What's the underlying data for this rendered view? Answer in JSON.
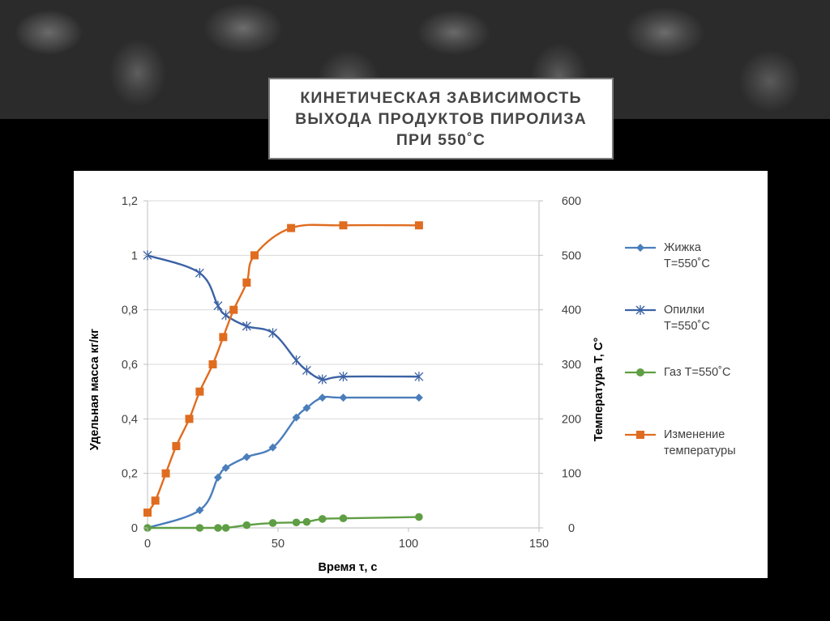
{
  "slide": {
    "title_lines": [
      "КИНЕТИЧЕСКАЯ ЗАВИСИМОСТЬ",
      "ВЫХОДА ПРОДУКТОВ ПИРОЛИЗА",
      "ПРИ 550˚С"
    ]
  },
  "chart_data": {
    "type": "line",
    "title": "",
    "xlabel": "Время τ, с",
    "ylabel": "Удельная масса кг/кг",
    "y2label": "Температура Т, С°",
    "xlim": [
      0,
      150
    ],
    "ylim": [
      0,
      1.2
    ],
    "y2lim": [
      0,
      600
    ],
    "x_ticks": [
      "0",
      "50",
      "100",
      "150"
    ],
    "x_tick_values": [
      0,
      50,
      100,
      150
    ],
    "y_ticks": [
      "0",
      "0,2",
      "0,4",
      "0,6",
      "0,8",
      "1",
      "1,2"
    ],
    "y_tick_values": [
      0,
      0.2,
      0.4,
      0.6,
      0.8,
      1.0,
      1.2
    ],
    "y2_ticks": [
      "0",
      "100",
      "200",
      "300",
      "400",
      "500",
      "600"
    ],
    "y2_tick_values": [
      0,
      100,
      200,
      300,
      400,
      500,
      600
    ],
    "grid": true,
    "legend_position": "right",
    "series": [
      {
        "name": "Жижка Т=550˚С",
        "legend_lines": [
          "Жижка",
          "Т=550˚С"
        ],
        "axis": "left",
        "marker": "diamond",
        "color": "#4a7ebb",
        "x": [
          0,
          20,
          27,
          30,
          38,
          48,
          57,
          61,
          67,
          75,
          104
        ],
        "y": [
          0.0,
          0.065,
          0.185,
          0.22,
          0.26,
          0.295,
          0.405,
          0.44,
          0.478,
          0.478,
          0.478
        ]
      },
      {
        "name": "Опилки Т=550˚С",
        "legend_lines": [
          "Опилки",
          "Т=550˚С"
        ],
        "axis": "left",
        "marker": "star",
        "color": "#3b62a4",
        "x": [
          0,
          20,
          27,
          30,
          38,
          48,
          57,
          61,
          67,
          75,
          104
        ],
        "y": [
          1.0,
          0.935,
          0.815,
          0.78,
          0.74,
          0.715,
          0.615,
          0.578,
          0.545,
          0.555,
          0.555
        ]
      },
      {
        "name": "Газ Т=550˚С",
        "legend_lines": [
          "Газ Т=550˚С"
        ],
        "axis": "left",
        "marker": "circle",
        "color": "#5f9e44",
        "x": [
          0,
          20,
          27,
          30,
          38,
          48,
          57,
          61,
          67,
          75,
          104
        ],
        "y": [
          0.0,
          0.0,
          0.0,
          0.0,
          0.01,
          0.018,
          0.02,
          0.022,
          0.033,
          0.035,
          0.04
        ]
      },
      {
        "name": "Изменение температуры",
        "legend_lines": [
          "Изменение",
          "температуры"
        ],
        "axis": "right",
        "marker": "square",
        "color": "#e06c1f",
        "x": [
          0,
          3,
          7,
          11,
          16,
          20,
          25,
          29,
          33,
          38,
          41,
          55,
          75,
          104
        ],
        "y": [
          28,
          50,
          100,
          150,
          200,
          250,
          300,
          350,
          400,
          450,
          500,
          550,
          555,
          555
        ]
      }
    ]
  }
}
